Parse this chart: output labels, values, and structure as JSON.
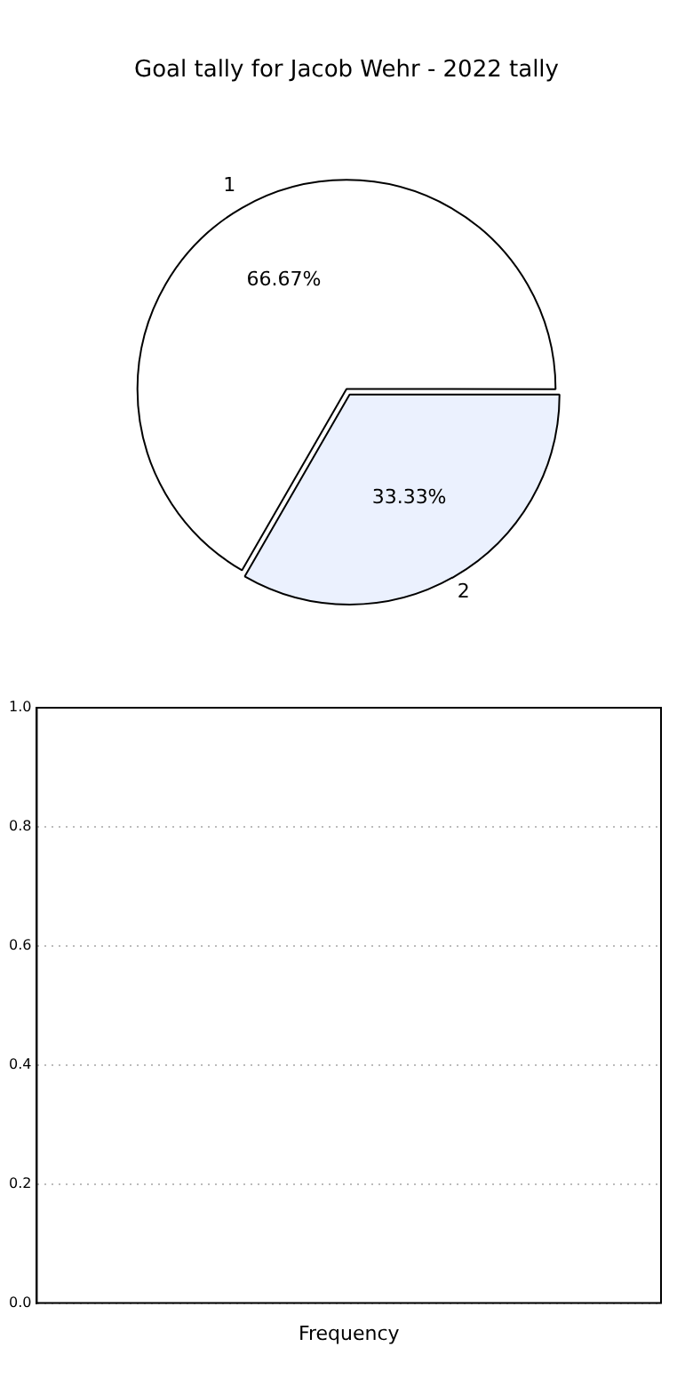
{
  "chart_data": [
    {
      "type": "pie",
      "title": "Goal tally for Jacob Wehr - 2022 tally",
      "categories": [
        "1",
        "2"
      ],
      "values": [
        66.67,
        33.33
      ],
      "colors": [
        "#ffffff",
        "#ebf1fe"
      ],
      "value_labels": [
        "66.67%",
        "33.33%"
      ]
    },
    {
      "type": "bar",
      "categories": [
        "Frequency"
      ],
      "values": [
        null
      ],
      "ylim": [
        0,
        1
      ],
      "yticks": [
        {
          "value": 0,
          "label": "0.0"
        },
        0.2,
        0.4,
        0.6,
        0.8,
        {
          "value": 1,
          "label": "1.0"
        }
      ],
      "grid": "y",
      "legend": false
    }
  ]
}
